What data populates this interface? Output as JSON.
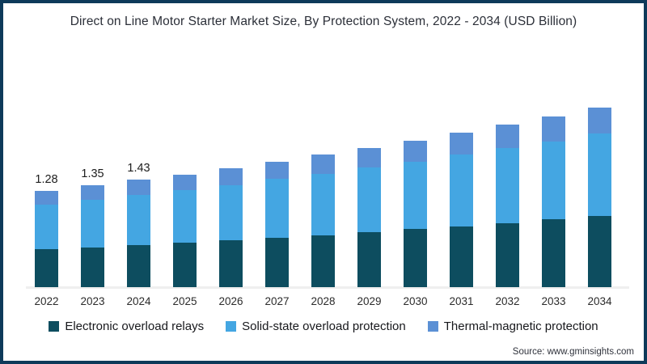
{
  "title": "Direct on Line Motor Starter Market Size, By Protection System, 2022 - 2034 (USD Billion)",
  "source": "Source: www.gminsights.com",
  "frame_border_color": "#0e3a5a",
  "chart_data": {
    "type": "bar",
    "stacked": true,
    "unit": "USD Billion",
    "title": "Direct on Line Motor Starter Market Size, By Protection System, 2022 - 2034 (USD Billion)",
    "categories": [
      "2022",
      "2023",
      "2024",
      "2025",
      "2026",
      "2027",
      "2028",
      "2029",
      "2030",
      "2031",
      "2032",
      "2033",
      "2034"
    ],
    "series": [
      {
        "name": "Electronic overload relays",
        "color": "#0d4d5f",
        "values": [
          0.5,
          0.53,
          0.56,
          0.59,
          0.62,
          0.66,
          0.69,
          0.73,
          0.77,
          0.81,
          0.85,
          0.9,
          0.95
        ]
      },
      {
        "name": "Solid-state overload protection",
        "color": "#44a6e2",
        "values": [
          0.6,
          0.63,
          0.67,
          0.7,
          0.74,
          0.78,
          0.82,
          0.86,
          0.9,
          0.95,
          1.0,
          1.04,
          1.09
        ]
      },
      {
        "name": "Thermal-magnetic protection",
        "color": "#5b90d5",
        "values": [
          0.18,
          0.19,
          0.2,
          0.21,
          0.22,
          0.23,
          0.25,
          0.26,
          0.28,
          0.29,
          0.31,
          0.33,
          0.35
        ]
      }
    ],
    "totals": [
      1.28,
      1.35,
      1.43,
      1.5,
      1.58,
      1.67,
      1.76,
      1.85,
      1.95,
      2.05,
      2.16,
      2.27,
      2.39
    ],
    "bar_value_labels": [
      "1.28",
      "1.35",
      "1.43",
      "",
      "",
      "",
      "",
      "",
      "",
      "",
      "",
      "",
      ""
    ],
    "xlabel": "",
    "ylabel": "",
    "ylim": [
      0,
      2.6
    ],
    "grid": false,
    "legend_position": "bottom"
  }
}
